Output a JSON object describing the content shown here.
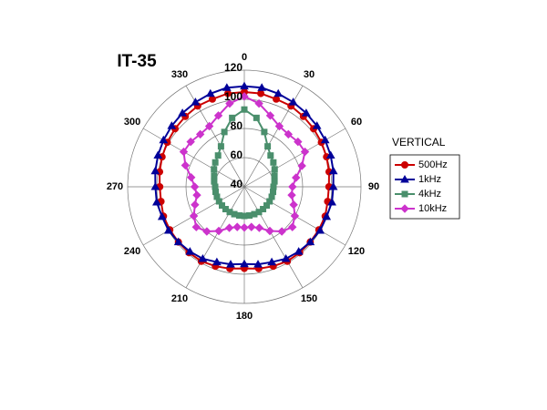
{
  "chart_data": {
    "type": "polar",
    "title": "IT-35",
    "legend_title": "VERTICAL",
    "legend": "right",
    "grid": true,
    "theta": [
      0,
      10,
      20,
      30,
      40,
      50,
      60,
      70,
      80,
      90,
      100,
      110,
      120,
      130,
      140,
      150,
      160,
      170,
      180,
      190,
      200,
      210,
      220,
      230,
      240,
      250,
      260,
      270,
      280,
      290,
      300,
      310,
      320,
      330,
      340,
      350
    ],
    "thetaticks": [
      0,
      30,
      60,
      90,
      120,
      150,
      180,
      210,
      240,
      270,
      300,
      330
    ],
    "rlim": [
      40,
      120
    ],
    "rticks": [
      40,
      60,
      80,
      100,
      120
    ],
    "series": [
      {
        "name": "500Hz",
        "color": "#cc0000",
        "marker": "circle",
        "values": [
          105,
          105,
          104,
          104,
          103,
          102,
          101,
          100,
          99,
          98,
          98,
          99,
          99,
          99,
          99,
          99,
          98,
          97,
          96,
          97,
          98,
          99,
          99,
          99,
          99,
          99,
          98,
          98,
          99,
          100,
          101,
          102,
          103,
          104,
          104,
          105
        ]
      },
      {
        "name": "1kHz",
        "color": "#000099",
        "marker": "triangle",
        "values": [
          109,
          109,
          108,
          107,
          106,
          105,
          104,
          103,
          102,
          101,
          101,
          100,
          100,
          99,
          98,
          97,
          95,
          94,
          93,
          94,
          95,
          97,
          98,
          99,
          100,
          100,
          101,
          101,
          102,
          103,
          104,
          105,
          106,
          107,
          108,
          109
        ]
      },
      {
        "name": "4kHz",
        "color": "#4a8f6c",
        "marker": "square",
        "values": [
          93,
          88,
          80,
          72,
          68,
          66,
          64,
          62,
          61,
          60,
          60,
          60,
          60,
          60,
          60,
          60,
          60,
          60,
          60,
          60,
          60,
          60,
          60,
          60,
          60,
          60,
          60,
          60,
          61,
          62,
          64,
          66,
          68,
          72,
          80,
          88
        ]
      },
      {
        "name": "10kHz",
        "color": "#cc33cc",
        "marker": "diamond",
        "values": [
          102,
          98,
          92,
          88,
          87,
          88,
          88,
          82,
          76,
          73,
          73,
          76,
          80,
          83,
          80,
          75,
          70,
          68,
          68,
          68,
          70,
          75,
          80,
          83,
          80,
          76,
          73,
          74,
          77,
          83,
          88,
          88,
          87,
          88,
          92,
          98
        ]
      }
    ]
  }
}
